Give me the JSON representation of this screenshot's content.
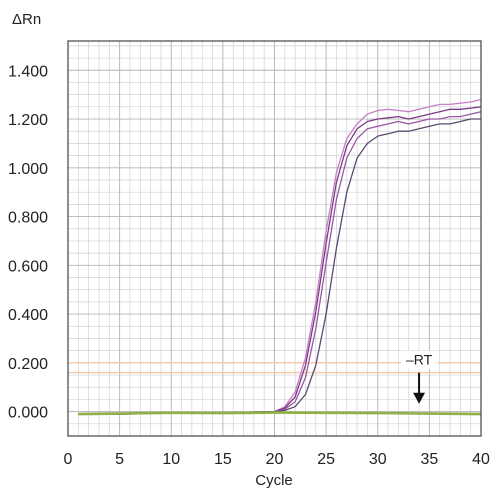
{
  "chart_data": {
    "type": "line",
    "ylabel": "ΔRn",
    "xlabel": "Cycle",
    "xlim": [
      0,
      40
    ],
    "ylim": [
      -0.1,
      1.52
    ],
    "x_ticks": [
      "0",
      "5",
      "10",
      "15",
      "20",
      "25",
      "30",
      "35",
      "40"
    ],
    "y_ticks": [
      "0.000",
      "0.200",
      "0.400",
      "0.600",
      "0.800",
      "1.000",
      "1.200",
      "1.400"
    ],
    "grid": true,
    "threshold_lines": [
      0.2,
      0.16
    ],
    "annotation": {
      "text": "–RT",
      "x": 34,
      "y": 0.02
    },
    "series": [
      {
        "color": "#c77fc7",
        "x": [
          1,
          5,
          10,
          15,
          20,
          21,
          22,
          23,
          24,
          25,
          26,
          27,
          28,
          29,
          30,
          31,
          32,
          33,
          34,
          35,
          36,
          37,
          38,
          39,
          40
        ],
        "values": [
          -0.01,
          -0.01,
          -0.005,
          -0.005,
          0.0,
          0.02,
          0.08,
          0.22,
          0.45,
          0.74,
          0.98,
          1.12,
          1.18,
          1.22,
          1.235,
          1.24,
          1.235,
          1.23,
          1.24,
          1.25,
          1.26,
          1.26,
          1.265,
          1.27,
          1.28
        ]
      },
      {
        "color": "#7a3a86",
        "x": [
          1,
          5,
          10,
          15,
          20,
          21,
          22,
          23,
          24,
          25,
          26,
          27,
          28,
          29,
          30,
          31,
          32,
          33,
          34,
          35,
          36,
          37,
          38,
          39,
          40
        ],
        "values": [
          -0.01,
          -0.01,
          -0.005,
          -0.005,
          0.0,
          0.015,
          0.06,
          0.19,
          0.41,
          0.69,
          0.94,
          1.09,
          1.16,
          1.19,
          1.2,
          1.205,
          1.21,
          1.2,
          1.21,
          1.22,
          1.23,
          1.24,
          1.24,
          1.245,
          1.25
        ]
      },
      {
        "color": "#9b56a3",
        "x": [
          1,
          5,
          10,
          15,
          20,
          21,
          22,
          23,
          24,
          25,
          26,
          27,
          28,
          29,
          30,
          31,
          32,
          33,
          34,
          35,
          36,
          37,
          38,
          39,
          40
        ],
        "values": [
          -0.01,
          -0.01,
          -0.005,
          -0.005,
          0.0,
          0.01,
          0.04,
          0.14,
          0.34,
          0.61,
          0.87,
          1.04,
          1.12,
          1.16,
          1.17,
          1.18,
          1.19,
          1.18,
          1.19,
          1.2,
          1.2,
          1.21,
          1.21,
          1.22,
          1.23
        ]
      },
      {
        "color": "#5c4a6e",
        "x": [
          1,
          5,
          10,
          15,
          20,
          21,
          22,
          23,
          24,
          25,
          26,
          27,
          28,
          29,
          30,
          31,
          32,
          33,
          34,
          35,
          36,
          37,
          38,
          39,
          40
        ],
        "values": [
          -0.01,
          -0.01,
          -0.005,
          -0.005,
          0.0,
          0.005,
          0.02,
          0.07,
          0.19,
          0.4,
          0.67,
          0.9,
          1.04,
          1.1,
          1.13,
          1.14,
          1.15,
          1.15,
          1.16,
          1.17,
          1.18,
          1.18,
          1.19,
          1.2,
          1.2
        ]
      },
      {
        "color": "#8fb246",
        "x": [
          1,
          5,
          10,
          15,
          20,
          25,
          30,
          35,
          40
        ],
        "values": [
          -0.01,
          -0.008,
          -0.005,
          -0.006,
          -0.004,
          -0.005,
          -0.006,
          -0.008,
          -0.01
        ]
      }
    ]
  }
}
